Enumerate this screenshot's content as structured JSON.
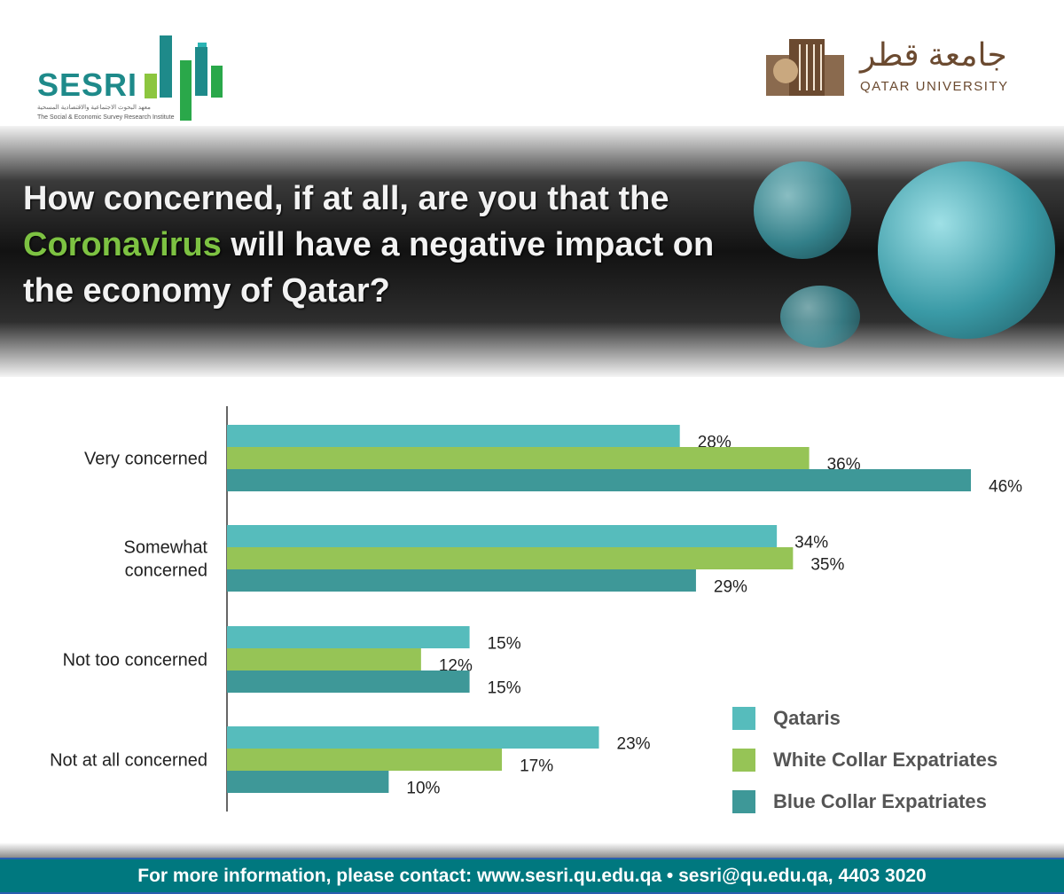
{
  "header": {
    "sesri_logo": {
      "name": "SESRI",
      "arabic": "معهد البحوث الاجتماعية والاقتصادية المسحية",
      "subtitle": "The Social & Economic Survey Research Institute"
    },
    "qu_logo": {
      "arabic": "جامعة قطر",
      "english": "QATAR UNIVERSITY"
    }
  },
  "banner": {
    "question_part1": "How concerned, if at all, are you that the ",
    "question_highlight": "Coronavirus",
    "question_part2": " will have a negative impact on the economy of Qatar?"
  },
  "colors": {
    "qataris": "#56bcbc",
    "white_collar": "#96c456",
    "blue_collar": "#3e9898",
    "highlight": "#7dc242",
    "footer": "#00787f"
  },
  "chart_data": {
    "type": "bar",
    "orientation": "horizontal",
    "title": "How concerned, if at all, are you that the Coronavirus will have a negative impact on the economy of Qatar?",
    "categories": [
      "Very concerned",
      "Somewhat concerned",
      "Not too concerned",
      "Not at all concerned"
    ],
    "category_lines": [
      [
        "Very concerned"
      ],
      [
        "Somewhat",
        "concerned"
      ],
      [
        "Not too concerned"
      ],
      [
        "Not at all concerned"
      ]
    ],
    "series": [
      {
        "name": "Qataris",
        "values": [
          28,
          34,
          15,
          23
        ],
        "labels": [
          "28%",
          "34%",
          "15%",
          "23%"
        ]
      },
      {
        "name": "White Collar Expatriates",
        "values": [
          36,
          35,
          12,
          17
        ],
        "labels": [
          "36%",
          "35%",
          "12%",
          "17%"
        ]
      },
      {
        "name": "Blue Collar Expatriates",
        "values": [
          46,
          29,
          15,
          10
        ],
        "labels": [
          "46%",
          "29%",
          "15%",
          "10%"
        ]
      }
    ],
    "xlim": [
      0,
      46
    ],
    "grid": false,
    "legend": "bottom-right"
  },
  "footer": {
    "text": "For more information, please contact: www.sesri.qu.edu.qa • sesri@qu.edu.qa,  4403 3020"
  }
}
